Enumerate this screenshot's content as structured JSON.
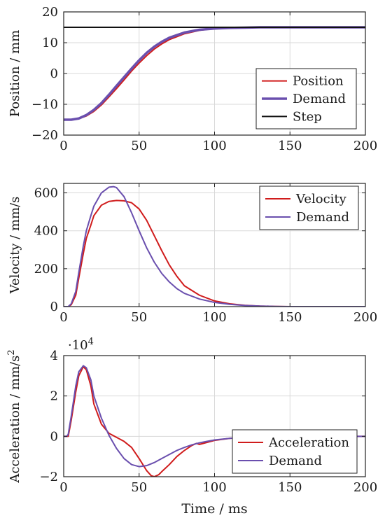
{
  "colors": {
    "red": "#d01c1c",
    "purple": "#6a4fae",
    "black": "#111111",
    "grid": "#d9d9d9",
    "axis": "#222222"
  },
  "chart_data": [
    {
      "type": "line",
      "ylabel": "Position / mm",
      "xlim": [
        0,
        200
      ],
      "ylim": [
        -20,
        20
      ],
      "xticks": [
        0,
        50,
        100,
        150,
        200
      ],
      "yticks": [
        -20,
        -10,
        0,
        10,
        20
      ],
      "xtick_labels": [
        "0",
        "50",
        "100",
        "150",
        "200"
      ],
      "ytick_labels": [
        "−20",
        "−10",
        "0",
        "10",
        "20"
      ],
      "grid": true,
      "legend": "bottom-right",
      "series": [
        {
          "name": "Position",
          "color": "#d01c1c",
          "width": 2,
          "x": [
            0,
            5,
            10,
            15,
            20,
            25,
            30,
            35,
            40,
            45,
            50,
            55,
            60,
            65,
            70,
            80,
            90,
            100,
            110,
            120,
            130,
            150,
            175,
            200
          ],
          "y": [
            -15,
            -15,
            -14.7,
            -13.8,
            -12.3,
            -10.2,
            -7.6,
            -4.9,
            -2.1,
            0.8,
            3.4,
            5.8,
            7.9,
            9.6,
            11.0,
            12.9,
            14.0,
            14.6,
            14.8,
            14.9,
            15.0,
            15.0,
            15.0,
            15.0
          ]
        },
        {
          "name": "Demand",
          "color": "#6a4fae",
          "width": 3.5,
          "x": [
            0,
            5,
            10,
            15,
            20,
            25,
            30,
            35,
            40,
            45,
            50,
            55,
            60,
            65,
            70,
            80,
            90,
            100,
            110,
            120,
            130,
            150,
            175,
            200
          ],
          "y": [
            -15,
            -15,
            -14.6,
            -13.5,
            -11.8,
            -9.6,
            -6.9,
            -4.0,
            -1.2,
            1.6,
            4.3,
            6.7,
            8.7,
            10.3,
            11.6,
            13.3,
            14.2,
            14.6,
            14.8,
            14.9,
            15.0,
            15.0,
            15.0,
            15.0
          ]
        },
        {
          "name": "Step",
          "color": "#111111",
          "width": 2,
          "x": [
            0,
            200
          ],
          "y": [
            15,
            15
          ]
        }
      ]
    },
    {
      "type": "line",
      "ylabel": "Velocity / mm/s",
      "xlim": [
        0,
        200
      ],
      "ylim": [
        0,
        650
      ],
      "xticks": [
        0,
        50,
        100,
        150,
        200
      ],
      "yticks": [
        0,
        200,
        400,
        600
      ],
      "xtick_labels": [
        "0",
        "50",
        "100",
        "150",
        "200"
      ],
      "ytick_labels": [
        "0",
        "200",
        "400",
        "600"
      ],
      "grid": true,
      "legend": "top-right",
      "series": [
        {
          "name": "Velocity",
          "color": "#d01c1c",
          "width": 2,
          "x": [
            0,
            3,
            5,
            8,
            10,
            13,
            15,
            18,
            20,
            25,
            30,
            35,
            40,
            45,
            50,
            55,
            60,
            65,
            70,
            75,
            80,
            90,
            100,
            110,
            120,
            130,
            140,
            150,
            175,
            200
          ],
          "y": [
            0,
            0,
            10,
            60,
            150,
            280,
            360,
            430,
            480,
            535,
            555,
            560,
            558,
            548,
            515,
            455,
            375,
            295,
            220,
            160,
            110,
            60,
            30,
            15,
            7,
            3,
            1,
            0,
            0,
            0
          ]
        },
        {
          "name": "Demand",
          "color": "#6a4fae",
          "width": 2,
          "x": [
            0,
            3,
            5,
            8,
            10,
            13,
            15,
            18,
            20,
            25,
            30,
            33,
            35,
            40,
            45,
            50,
            55,
            60,
            65,
            70,
            75,
            80,
            90,
            100,
            110,
            120,
            130,
            140,
            150,
            175,
            200
          ],
          "y": [
            0,
            0,
            15,
            80,
            180,
            320,
            400,
            480,
            530,
            600,
            630,
            633,
            628,
            580,
            495,
            400,
            310,
            235,
            175,
            130,
            95,
            70,
            40,
            22,
            12,
            6,
            3,
            1,
            0,
            0,
            0
          ]
        }
      ]
    },
    {
      "type": "line",
      "ylabel": "Acceleration / mm/s",
      "ylabel_sup": "2",
      "multiplier": "·10",
      "multiplier_exp": "4",
      "xlabel": "Time / ms",
      "xlim": [
        0,
        200
      ],
      "ylim": [
        -2,
        4
      ],
      "xticks": [
        0,
        50,
        100,
        150,
        200
      ],
      "yticks": [
        -2,
        0,
        2,
        4
      ],
      "xtick_labels": [
        "0",
        "50",
        "100",
        "150",
        "200"
      ],
      "ytick_labels": [
        "−2",
        "0",
        "2",
        "4"
      ],
      "grid": true,
      "legend": "bottom-right",
      "series": [
        {
          "name": "Acceleration",
          "color": "#d01c1c",
          "width": 2,
          "x": [
            0,
            2,
            3,
            5,
            8,
            10,
            13,
            15,
            18,
            20,
            25,
            30,
            35,
            40,
            45,
            50,
            55,
            58,
            60,
            63,
            65,
            70,
            75,
            80,
            85,
            88,
            90,
            95,
            100,
            110,
            120,
            150,
            175,
            200
          ],
          "y": [
            0,
            0,
            0,
            0.8,
            2.2,
            3.0,
            3.45,
            3.3,
            2.5,
            1.6,
            0.6,
            0.15,
            -0.05,
            -0.25,
            -0.55,
            -1.1,
            -1.7,
            -1.95,
            -2.0,
            -1.9,
            -1.75,
            -1.4,
            -1.0,
            -0.7,
            -0.45,
            -0.35,
            -0.4,
            -0.3,
            -0.2,
            -0.1,
            -0.05,
            0,
            0,
            0
          ]
        },
        {
          "name": "Demand",
          "color": "#6a4fae",
          "width": 2,
          "x": [
            0,
            2,
            3,
            5,
            8,
            10,
            13,
            15,
            18,
            20,
            25,
            30,
            35,
            40,
            45,
            50,
            55,
            60,
            65,
            70,
            75,
            80,
            85,
            90,
            95,
            100,
            110,
            120,
            150,
            175,
            200
          ],
          "y": [
            0,
            0,
            0.1,
            1.0,
            2.5,
            3.2,
            3.5,
            3.4,
            2.8,
            2.0,
            0.9,
            0.05,
            -0.6,
            -1.1,
            -1.4,
            -1.5,
            -1.45,
            -1.3,
            -1.1,
            -0.9,
            -0.7,
            -0.55,
            -0.42,
            -0.32,
            -0.25,
            -0.18,
            -0.1,
            -0.05,
            0,
            0,
            0
          ]
        }
      ]
    }
  ]
}
